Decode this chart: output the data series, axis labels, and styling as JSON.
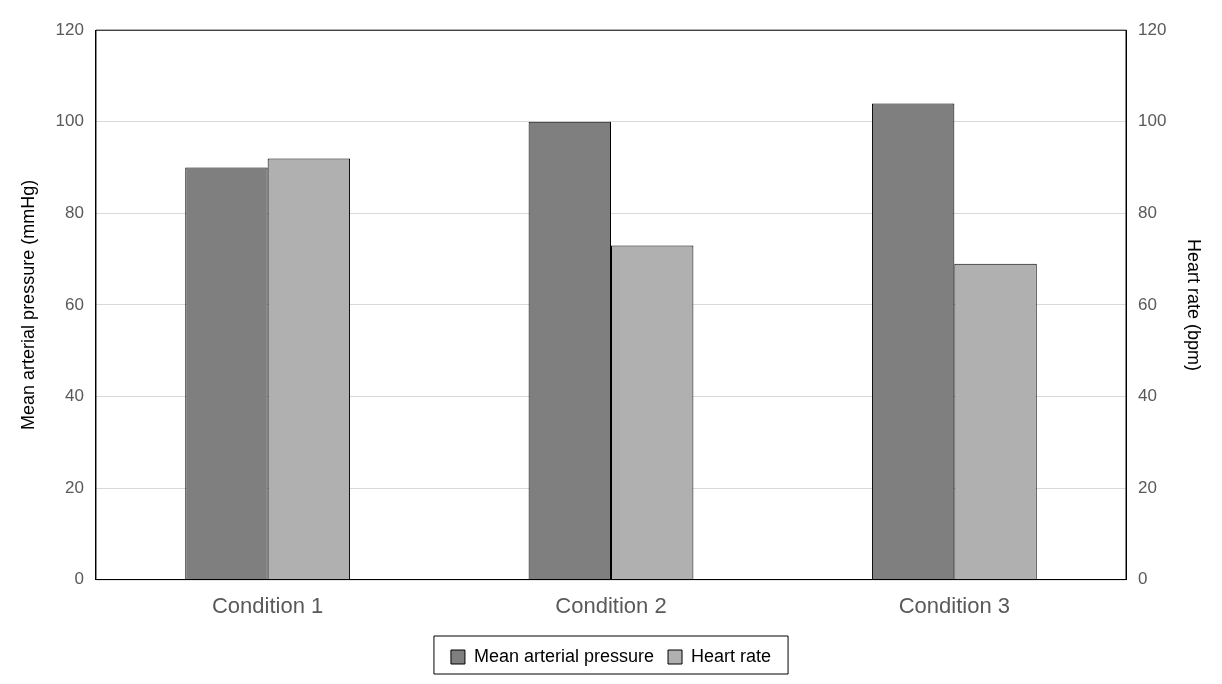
{
  "chart_data": {
    "type": "bar",
    "categories": [
      "Condition 1",
      "Condition 2",
      "Condition 3"
    ],
    "series": [
      {
        "name": "Mean arterial pressure",
        "color": "#7f7f7f",
        "values": [
          90,
          100,
          104
        ]
      },
      {
        "name": "Heart rate",
        "color": "#b0b0b0",
        "values": [
          92,
          73,
          69
        ],
        "axis": "y2"
      }
    ],
    "ylabel": "Mean arterial pressure (mmHg)",
    "y2label": "Heart rate (bpm)",
    "ylim": [
      0,
      120
    ],
    "yticks": [
      0,
      20,
      40,
      60,
      80,
      100,
      120
    ],
    "y2lim": [
      0,
      120
    ],
    "y2ticks": [
      0,
      20,
      40,
      60,
      80,
      100,
      120
    ],
    "grid": "y",
    "legend": "bottom"
  }
}
